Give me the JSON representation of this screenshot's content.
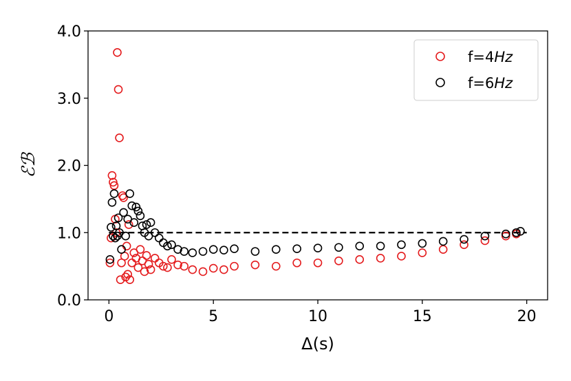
{
  "chart_data": {
    "type": "scatter",
    "xlabel": "Δ(s)",
    "ylabel": "ℰℬ",
    "xlim": [
      -1,
      21
    ],
    "ylim": [
      0,
      4
    ],
    "x_ticks": [
      0,
      5,
      10,
      15,
      20
    ],
    "x_tick_labels": [
      "0",
      "5",
      "10",
      "15",
      "20"
    ],
    "y_ticks": [
      0,
      1,
      2,
      3,
      4
    ],
    "y_tick_labels": [
      "0.0",
      "1.0",
      "2.0",
      "3.0",
      "4.0"
    ],
    "grid": false,
    "legend_placement": "top-right",
    "reference_line": {
      "y": 1.0,
      "x_range": [
        0,
        20
      ],
      "style": "dashed",
      "color": "#000000"
    },
    "series": [
      {
        "name": "f=4Hz",
        "name_prefix": "f=4",
        "name_unit": "Hz",
        "color": "#e41a1c",
        "marker": "open-circle",
        "x": [
          0.05,
          0.1,
          0.15,
          0.2,
          0.25,
          0.3,
          0.35,
          0.4,
          0.45,
          0.5,
          0.55,
          0.6,
          0.65,
          0.7,
          0.75,
          0.8,
          0.85,
          0.9,
          0.95,
          1.0,
          1.1,
          1.2,
          1.3,
          1.4,
          1.5,
          1.6,
          1.7,
          1.8,
          1.9,
          2.0,
          2.2,
          2.4,
          2.6,
          2.8,
          3.0,
          3.3,
          3.6,
          4.0,
          4.5,
          5.0,
          5.5,
          6.0,
          7.0,
          8.0,
          9.0,
          10.0,
          11.0,
          12.0,
          13.0,
          14.0,
          15.0,
          16.0,
          17.0,
          18.0,
          19.0,
          19.5
        ],
        "y": [
          0.55,
          0.92,
          1.85,
          1.75,
          1.7,
          1.2,
          1.0,
          3.68,
          3.13,
          2.41,
          0.3,
          0.55,
          1.55,
          1.52,
          0.65,
          0.34,
          0.8,
          0.38,
          1.12,
          0.3,
          0.55,
          0.7,
          0.62,
          0.48,
          0.75,
          0.58,
          0.42,
          0.66,
          0.53,
          0.45,
          0.62,
          0.55,
          0.5,
          0.48,
          0.6,
          0.52,
          0.5,
          0.45,
          0.42,
          0.47,
          0.45,
          0.5,
          0.52,
          0.5,
          0.55,
          0.55,
          0.58,
          0.6,
          0.62,
          0.65,
          0.7,
          0.75,
          0.82,
          0.88,
          0.95,
          0.98
        ]
      },
      {
        "name": "f=6Hz",
        "name_prefix": "f=6",
        "name_unit": "Hz",
        "color": "#000000",
        "marker": "open-circle",
        "x": [
          0.05,
          0.1,
          0.15,
          0.2,
          0.25,
          0.3,
          0.35,
          0.4,
          0.45,
          0.5,
          0.6,
          0.7,
          0.8,
          0.9,
          1.0,
          1.1,
          1.2,
          1.3,
          1.4,
          1.5,
          1.6,
          1.7,
          1.8,
          1.9,
          2.0,
          2.2,
          2.4,
          2.6,
          2.8,
          3.0,
          3.3,
          3.6,
          4.0,
          4.5,
          5.0,
          5.5,
          6.0,
          7.0,
          8.0,
          9.0,
          10.0,
          11.0,
          12.0,
          13.0,
          14.0,
          15.0,
          16.0,
          17.0,
          18.0,
          19.0,
          19.5,
          19.7
        ],
        "y": [
          0.6,
          1.08,
          1.45,
          0.95,
          1.58,
          0.92,
          1.1,
          0.95,
          1.22,
          1.0,
          0.75,
          1.3,
          0.95,
          1.2,
          1.58,
          1.4,
          1.15,
          1.38,
          1.32,
          1.25,
          1.1,
          1.0,
          1.12,
          0.95,
          1.15,
          1.0,
          0.92,
          0.85,
          0.8,
          0.82,
          0.75,
          0.72,
          0.7,
          0.72,
          0.75,
          0.74,
          0.76,
          0.72,
          0.75,
          0.76,
          0.77,
          0.78,
          0.8,
          0.8,
          0.82,
          0.84,
          0.87,
          0.9,
          0.95,
          0.98,
          1.0,
          1.02
        ]
      }
    ]
  }
}
